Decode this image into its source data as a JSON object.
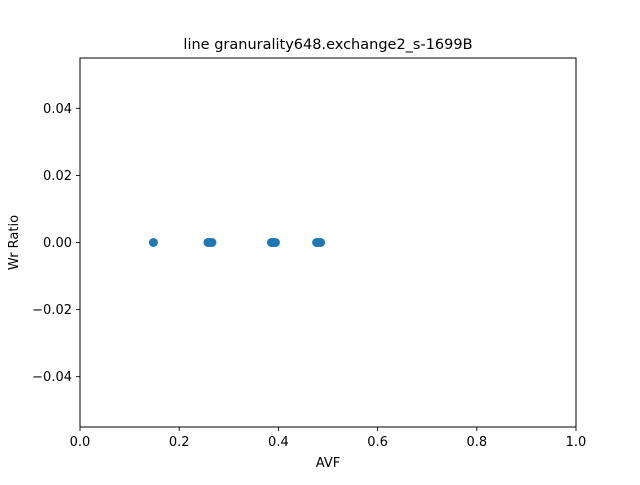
{
  "chart_data": {
    "type": "scatter",
    "title": "line granurality648.exchange2_s-1699B",
    "xlabel": "AVF",
    "ylabel": "Wr Ratio",
    "xlim": [
      0.0,
      1.0
    ],
    "ylim": [
      -0.055,
      0.055
    ],
    "xticks": [
      0.0,
      0.2,
      0.4,
      0.6,
      0.8,
      1.0
    ],
    "xtick_labels": [
      "0.0",
      "0.2",
      "0.4",
      "0.6",
      "0.8",
      "1.0"
    ],
    "yticks": [
      -0.04,
      -0.02,
      0.0,
      0.02,
      0.04
    ],
    "ytick_labels": [
      "−0.04",
      "−0.02",
      "0.00",
      "0.02",
      "0.04"
    ],
    "grid": false,
    "legend": false,
    "marker_color": "#1f77b4",
    "series": [
      {
        "points": [
          {
            "x": 0.148,
            "y": 0.0
          },
          {
            "x": 0.258,
            "y": 0.0
          },
          {
            "x": 0.262,
            "y": 0.0
          },
          {
            "x": 0.266,
            "y": 0.0
          },
          {
            "x": 0.386,
            "y": 0.0
          },
          {
            "x": 0.39,
            "y": 0.0
          },
          {
            "x": 0.394,
            "y": 0.0
          },
          {
            "x": 0.477,
            "y": 0.0
          },
          {
            "x": 0.481,
            "y": 0.0
          },
          {
            "x": 0.485,
            "y": 0.0
          }
        ]
      }
    ]
  }
}
